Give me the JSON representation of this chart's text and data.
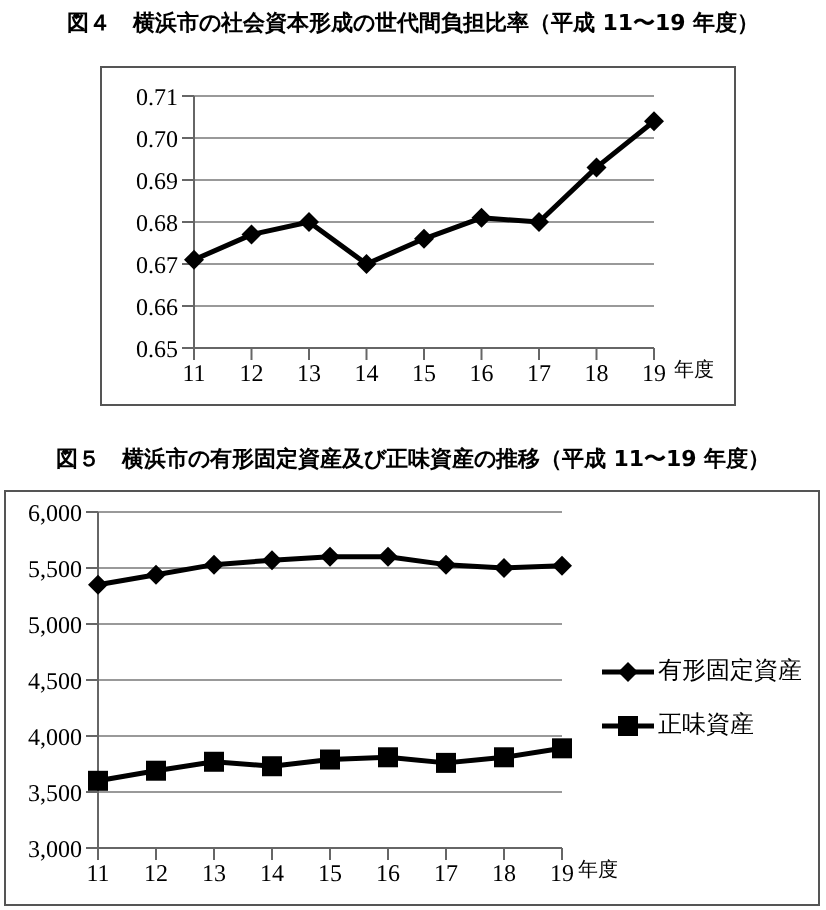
{
  "chart_data": [
    {
      "type": "line",
      "title": "図４　横浜市の社会資本形成の世代間負担比率（平成 11〜19 年度）",
      "xlabel": "年度",
      "categories": [
        "11",
        "12",
        "13",
        "14",
        "15",
        "16",
        "17",
        "18",
        "19"
      ],
      "series": [
        {
          "color": "#000000",
          "marker": "diamond",
          "values": [
            0.671,
            0.677,
            0.68,
            0.67,
            0.676,
            0.681,
            0.68,
            0.693,
            0.704
          ]
        }
      ],
      "ylim": [
        0.65,
        0.71
      ],
      "yticks": [
        {
          "value": 0.65,
          "label": "0.65"
        },
        {
          "value": 0.66,
          "label": "0.66"
        },
        {
          "value": 0.67,
          "label": "0.67"
        },
        {
          "value": 0.68,
          "label": "0.68"
        },
        {
          "value": 0.69,
          "label": "0.69"
        },
        {
          "value": 0.7,
          "label": "0.70"
        },
        {
          "value": 0.71,
          "label": "0.71"
        }
      ],
      "grid": "y",
      "legend": false
    },
    {
      "type": "line",
      "title": "図５　横浜市の有形固定資産及び正味資産の推移（平成 11〜19 年度）",
      "xlabel": "年度",
      "categories": [
        "11",
        "12",
        "13",
        "14",
        "15",
        "16",
        "17",
        "18",
        "19"
      ],
      "series": [
        {
          "name": "有形固定資産",
          "color": "#000000",
          "marker": "diamond",
          "values": [
            5350,
            5440,
            5530,
            5570,
            5600,
            5600,
            5530,
            5500,
            5520
          ]
        },
        {
          "name": "正味資産",
          "color": "#000000",
          "marker": "square",
          "values": [
            3600,
            3690,
            3770,
            3730,
            3790,
            3810,
            3760,
            3810,
            3890
          ]
        }
      ],
      "ylim": [
        3000,
        6000
      ],
      "yticks": [
        {
          "value": 3000,
          "label": "3,000"
        },
        {
          "value": 3500,
          "label": "3,500"
        },
        {
          "value": 4000,
          "label": "4,000"
        },
        {
          "value": 4500,
          "label": "4,500"
        },
        {
          "value": 5000,
          "label": "5,000"
        },
        {
          "value": 5500,
          "label": "5,500"
        },
        {
          "value": 6000,
          "label": "6,000"
        }
      ],
      "grid": "y",
      "legend": "right"
    }
  ]
}
